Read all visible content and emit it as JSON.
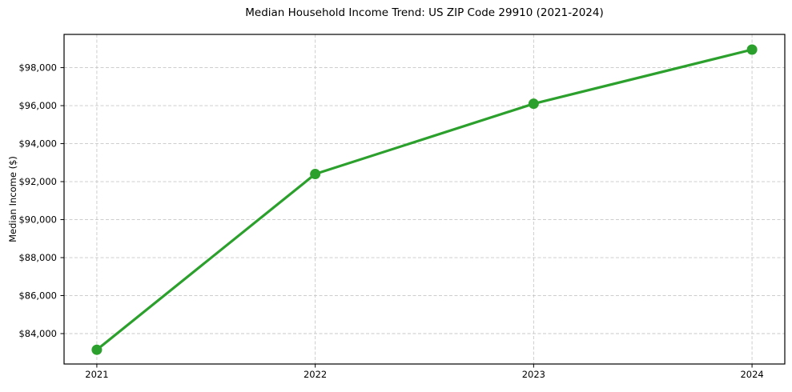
{
  "chart_data": {
    "type": "line",
    "title": "Median Household Income Trend: US ZIP Code 29910 (2021-2024)",
    "xlabel": "",
    "ylabel": "Median Income ($)",
    "x": [
      2021,
      2022,
      2023,
      2024
    ],
    "x_labels": [
      "2021",
      "2022",
      "2023",
      "2024"
    ],
    "series": [
      {
        "values": [
          83150,
          92400,
          96100,
          98950
        ],
        "color": "#2ca02c"
      }
    ],
    "yticks": [
      84000,
      86000,
      88000,
      90000,
      92000,
      94000,
      96000,
      98000
    ],
    "ytick_labels": [
      "$84,000",
      "$86,000",
      "$88,000",
      "$90,000",
      "$92,000",
      "$94,000",
      "$96,000",
      "$98,000"
    ],
    "xlim": [
      2020.85,
      2024.15
    ],
    "ylim": [
      82400,
      99750
    ],
    "grid": true,
    "grid_style": "dashed",
    "grid_color": "#c8c8c8",
    "legend": false,
    "background_color": "#ffffff",
    "spine_color": "#000000",
    "line_width": 3.2,
    "marker_radius": 6.5
  }
}
